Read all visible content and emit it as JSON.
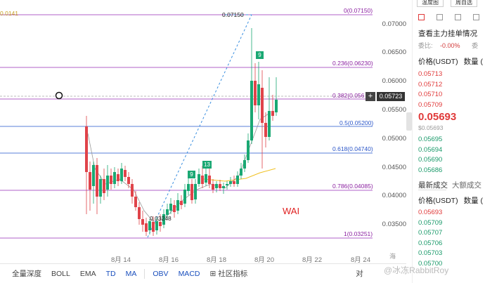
{
  "chart": {
    "price_axis": [
      "0.07000",
      "0.06500",
      "0.06000",
      "0.05500",
      "0.05000",
      "0.04500",
      "0.04000",
      "0.03500"
    ],
    "fib_levels": [
      {
        "label": "0(0.07150)",
        "color": "#8a1fa0"
      },
      {
        "label": "0.236(0.06230)",
        "color": "#8a1fa0"
      },
      {
        "label": "0.382(0.056",
        "color": "#8a1fa0"
      },
      {
        "label": "0.5(0.05200)",
        "color": "#2a55c8"
      },
      {
        "label": "0.618(0.04740)",
        "color": "#2a55c8"
      },
      {
        "label": "0.786(0.04085)",
        "color": "#8a1fa0"
      },
      {
        "label": "1(0.03251)",
        "color": "#8a1fa0"
      }
    ],
    "high_label": "0.07150",
    "low_label": "0.03248",
    "current_price": "0.05723",
    "top_left_label": "0.0141",
    "plus": "+",
    "dates": [
      "8月 14",
      "8月 16",
      "8月 18",
      "8月 20",
      "8月 22",
      "8月 24"
    ],
    "badges": [
      "9",
      "9",
      "13",
      "9"
    ],
    "annotation": "WAI",
    "axis_partial": "海"
  },
  "toolbar": {
    "items": [
      "全量深度",
      "BOLL",
      "EMA",
      "TD",
      "MA",
      "OBV",
      "MACD",
      "社区指标",
      "对"
    ]
  },
  "orderbook": {
    "top_buttons": [
      "温度图",
      "周自选"
    ],
    "title": "查看主力挂单情况",
    "ratio_label": "委比:",
    "ratio_value": "-0.00%",
    "ratio_right": "委",
    "header": "价格(USDT)",
    "header_qty": "数量 (",
    "asks": [
      "0.05713",
      "0.05712",
      "0.05710",
      "0.05709"
    ],
    "last_price": "0.05693",
    "last_price_sub": "$0.05693",
    "bids": [
      "0.05695",
      "0.05694",
      "0.05690",
      "0.05686"
    ],
    "tabs": [
      "最新成交",
      "大额成交"
    ],
    "header2": "价格(USDT)",
    "header2_qty": "数量 (",
    "trades": [
      {
        "price": "0.05693",
        "side": "sell"
      },
      {
        "price": "0.05709",
        "side": "buy"
      },
      {
        "price": "0.05707",
        "side": "buy"
      },
      {
        "price": "0.05706",
        "side": "buy"
      },
      {
        "price": "0.05703",
        "side": "buy"
      },
      {
        "price": "0.05700",
        "side": "buy"
      }
    ]
  },
  "watermark": "@冰冻RabbitRoy",
  "colors": {
    "up": "#1aa873",
    "down": "#e0434a",
    "fib": "#a040c0",
    "blue": "#2a55c8"
  }
}
